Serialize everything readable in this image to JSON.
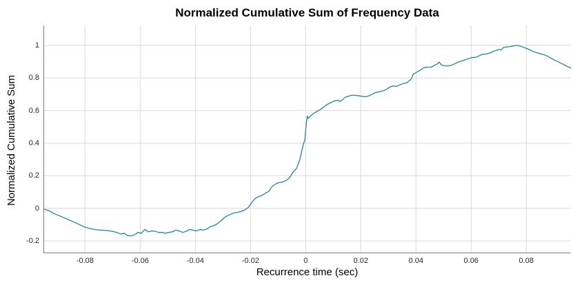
{
  "chart_data": {
    "type": "line",
    "title": "Normalized Cumulative Sum of Frequency Data",
    "xlabel": "Recurrence time (sec)",
    "ylabel": "Normalized Cumulative Sum",
    "xlim": [
      -0.0951,
      0.0962
    ],
    "ylim": [
      -0.276,
      1.122
    ],
    "grid": true,
    "legend": "none",
    "x_ticks": [
      {
        "v": -0.08,
        "label": "-0.08"
      },
      {
        "v": -0.06,
        "label": "-0.06"
      },
      {
        "v": -0.04,
        "label": "-0.04"
      },
      {
        "v": -0.02,
        "label": "-0.02"
      },
      {
        "v": 0,
        "label": "0"
      },
      {
        "v": 0.02,
        "label": "0.02"
      },
      {
        "v": 0.04,
        "label": "0.04"
      },
      {
        "v": 0.06,
        "label": "0.06"
      },
      {
        "v": 0.08,
        "label": "0.08"
      }
    ],
    "y_ticks": [
      {
        "v": 1,
        "label": "1"
      },
      {
        "v": 0.8,
        "label": "0.8"
      },
      {
        "v": 0.6,
        "label": "0.6"
      },
      {
        "v": 0.4,
        "label": "0.4"
      },
      {
        "v": 0.2,
        "label": "0.2"
      },
      {
        "v": 0,
        "label": "0"
      },
      {
        "v": -0.2,
        "label": "-0.2"
      }
    ],
    "colors": {
      "line": "#1f8a8a",
      "gridline": "#d9d9d9",
      "axis": "#7a7a7a",
      "tick_text": "#262626",
      "title_text": "#000000"
    },
    "series": [
      {
        "name": "normalized cumulative sum",
        "x": [
          -0.095,
          -0.0933,
          -0.0908,
          -0.0883,
          -0.0858,
          -0.0833,
          -0.0803,
          -0.0783,
          -0.0758,
          -0.0733,
          -0.0708,
          -0.0683,
          -0.0671,
          -0.0658,
          -0.0646,
          -0.0633,
          -0.0621,
          -0.0608,
          -0.0596,
          -0.0583,
          -0.0571,
          -0.0558,
          -0.0546,
          -0.0533,
          -0.0521,
          -0.0508,
          -0.0496,
          -0.0483,
          -0.0471,
          -0.0458,
          -0.0446,
          -0.0433,
          -0.0421,
          -0.0408,
          -0.0396,
          -0.0383,
          -0.0371,
          -0.0358,
          -0.0346,
          -0.0333,
          -0.0321,
          -0.0308,
          -0.0296,
          -0.0283,
          -0.0271,
          -0.0258,
          -0.0246,
          -0.0233,
          -0.0221,
          -0.0208,
          -0.0196,
          -0.0183,
          -0.0171,
          -0.0158,
          -0.0146,
          -0.0133,
          -0.0121,
          -0.0108,
          -0.0096,
          -0.0083,
          -0.0071,
          -0.0058,
          -0.0046,
          -0.0033,
          -0.0021,
          -0.0013,
          -0.0008,
          -0.0003,
          0.0,
          0.0003,
          0.0006,
          0.0009,
          0.0017,
          0.0029,
          0.0042,
          0.0054,
          0.0067,
          0.0079,
          0.0092,
          0.0104,
          0.0117,
          0.0124,
          0.0132,
          0.0142,
          0.0154,
          0.0167,
          0.0179,
          0.0192,
          0.0204,
          0.0217,
          0.0229,
          0.0242,
          0.0254,
          0.0267,
          0.0279,
          0.0292,
          0.0304,
          0.0317,
          0.0329,
          0.0342,
          0.0354,
          0.0367,
          0.0377,
          0.0384,
          0.0389,
          0.0399,
          0.0417,
          0.0429,
          0.0442,
          0.0454,
          0.0467,
          0.0479,
          0.0484,
          0.0492,
          0.0504,
          0.0517,
          0.0529,
          0.0542,
          0.0554,
          0.0567,
          0.0579,
          0.0592,
          0.0604,
          0.0617,
          0.0629,
          0.0642,
          0.0654,
          0.0667,
          0.0679,
          0.0692,
          0.0702,
          0.0709,
          0.0717,
          0.0729,
          0.0742,
          0.0754,
          0.0767,
          0.0779,
          0.0792,
          0.0804,
          0.0817,
          0.0829,
          0.0842,
          0.0854,
          0.0867,
          0.0879,
          0.0892,
          0.0904,
          0.0917,
          0.0929,
          0.0942,
          0.0954,
          0.0965
        ],
        "y": [
          -0.005,
          -0.013,
          -0.036,
          -0.053,
          -0.072,
          -0.09,
          -0.114,
          -0.124,
          -0.132,
          -0.135,
          -0.139,
          -0.149,
          -0.158,
          -0.153,
          -0.167,
          -0.17,
          -0.163,
          -0.148,
          -0.153,
          -0.13,
          -0.144,
          -0.139,
          -0.141,
          -0.148,
          -0.148,
          -0.153,
          -0.148,
          -0.144,
          -0.134,
          -0.139,
          -0.148,
          -0.141,
          -0.13,
          -0.134,
          -0.139,
          -0.13,
          -0.134,
          -0.127,
          -0.113,
          -0.106,
          -0.096,
          -0.078,
          -0.058,
          -0.045,
          -0.036,
          -0.028,
          -0.024,
          -0.019,
          -0.01,
          0.005,
          0.035,
          0.06,
          0.072,
          0.08,
          0.092,
          0.105,
          0.135,
          0.15,
          0.158,
          0.162,
          0.17,
          0.188,
          0.222,
          0.245,
          0.3,
          0.36,
          0.395,
          0.42,
          0.48,
          0.53,
          0.565,
          0.552,
          0.565,
          0.582,
          0.596,
          0.607,
          0.624,
          0.638,
          0.649,
          0.659,
          0.663,
          0.655,
          0.663,
          0.68,
          0.687,
          0.694,
          0.694,
          0.691,
          0.687,
          0.684,
          0.69,
          0.701,
          0.711,
          0.715,
          0.72,
          0.729,
          0.743,
          0.751,
          0.748,
          0.758,
          0.765,
          0.77,
          0.785,
          0.796,
          0.822,
          0.832,
          0.849,
          0.863,
          0.866,
          0.866,
          0.877,
          0.888,
          0.898,
          0.88,
          0.874,
          0.874,
          0.877,
          0.888,
          0.898,
          0.905,
          0.912,
          0.919,
          0.926,
          0.926,
          0.936,
          0.945,
          0.947,
          0.952,
          0.962,
          0.969,
          0.975,
          0.971,
          0.987,
          0.99,
          0.992,
          0.997,
          1.0,
          0.995,
          0.987,
          0.979,
          0.969,
          0.959,
          0.953,
          0.947,
          0.941,
          0.931,
          0.919,
          0.908,
          0.898,
          0.888,
          0.877,
          0.866,
          0.859
        ]
      }
    ]
  }
}
